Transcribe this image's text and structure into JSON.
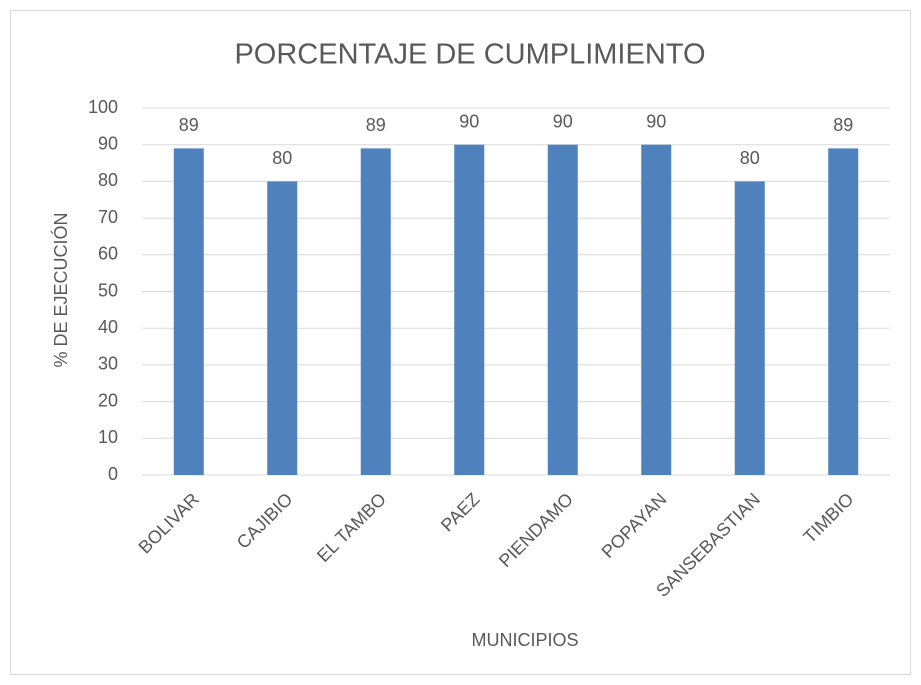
{
  "chart_data": {
    "type": "bar",
    "title": "PORCENTAJE DE CUMPLIMIENTO",
    "xlabel": "MUNICIPIOS",
    "ylabel": "% DE EJECUCIÓN",
    "categories": [
      "BOLIVAR",
      "CAJIBIO",
      "EL TAMBO",
      "PAEZ",
      "PIENDAMO",
      "POPAYAN",
      "SANSEBASTIAN",
      "TIMBIO"
    ],
    "values": [
      89,
      80,
      89,
      90,
      90,
      90,
      80,
      89
    ],
    "color": "#4f81bd",
    "ylim": [
      0,
      100
    ],
    "yticks": [
      0,
      10,
      20,
      30,
      40,
      50,
      60,
      70,
      80,
      90,
      100
    ],
    "grid": true
  }
}
